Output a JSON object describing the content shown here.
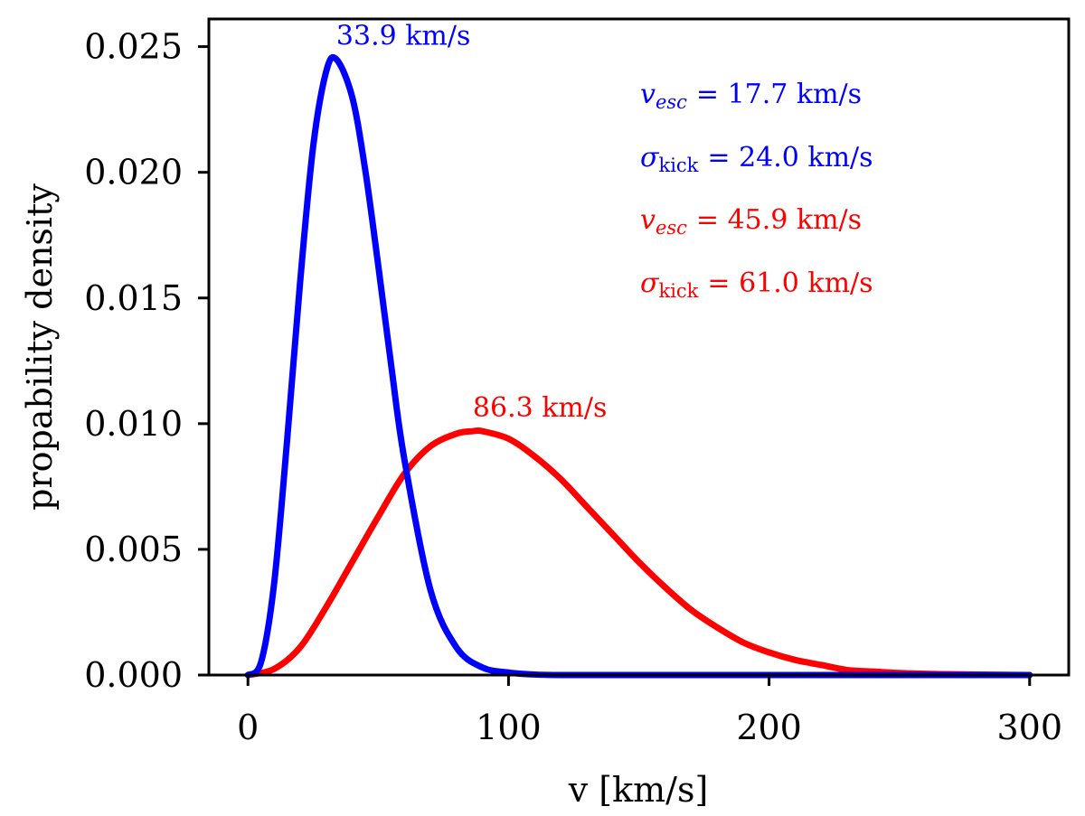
{
  "chart_data": {
    "type": "line",
    "xlabel": "v [km/s]",
    "ylabel": "propability density",
    "xlim": [
      -15,
      315
    ],
    "ylim": [
      0,
      0.0261
    ],
    "xticks": [
      0,
      100,
      200,
      300
    ],
    "xtick_labels": [
      "0",
      "100",
      "200",
      "300"
    ],
    "yticks": [
      0,
      0.005,
      0.01,
      0.015,
      0.02,
      0.025
    ],
    "ytick_labels": [
      "0.000",
      "0.005",
      "0.010",
      "0.015",
      "0.020",
      "0.025"
    ],
    "grid": false,
    "series": [
      {
        "name": "blue",
        "color": "#0000ff",
        "sigma_kick_value": 24.0,
        "v_esc_value": 17.7,
        "peak_x": 33.9,
        "peak_y": 0.0245,
        "peak_label": "33.9 km/s",
        "x": [
          0,
          5,
          10,
          15,
          20,
          25,
          30,
          33.9,
          40,
          45,
          50,
          55,
          60,
          70,
          80,
          90,
          100,
          110,
          120,
          150,
          200,
          250,
          300
        ],
        "y": [
          0,
          0.0005,
          0.0036,
          0.0093,
          0.0156,
          0.021,
          0.024,
          0.0245,
          0.023,
          0.0201,
          0.0163,
          0.0123,
          0.0086,
          0.0034,
          0.0011,
          0.0003,
          0.0001,
          2e-05,
          0,
          0,
          0,
          0,
          0
        ]
      },
      {
        "name": "red",
        "color": "#ff0000",
        "sigma_kick_value": 61.0,
        "v_esc_value": 45.9,
        "peak_x": 86.3,
        "peak_y": 0.0097,
        "peak_label": "86.3 km/s",
        "x": [
          0,
          10,
          20,
          30,
          40,
          50,
          60,
          70,
          80,
          86.3,
          90,
          100,
          110,
          120,
          130,
          140,
          150,
          160,
          170,
          180,
          190,
          200,
          210,
          220,
          230,
          240,
          250,
          260,
          270,
          280,
          290,
          300
        ],
        "y": [
          0,
          0.00024,
          0.0011,
          0.0027,
          0.0045,
          0.0063,
          0.008,
          0.0091,
          0.0096,
          0.0097,
          0.0097,
          0.0094,
          0.0087,
          0.0078,
          0.0067,
          0.0056,
          0.0045,
          0.0035,
          0.0026,
          0.0019,
          0.0013,
          0.0009,
          0.0006,
          0.0004,
          0.0002,
          0.00014,
          8e-05,
          5e-05,
          3e-05,
          2e-05,
          1e-05,
          0
        ]
      }
    ],
    "annotations": [
      {
        "symbol": "v",
        "sub": "esc",
        "value_text": "= 17.7 km/s",
        "color": "#0000ff"
      },
      {
        "symbol": "σ",
        "sub": "kick",
        "value_text": "= 24.0 km/s",
        "color": "#0000ff"
      },
      {
        "symbol": "v",
        "sub": "esc",
        "value_text": "= 45.9 km/s",
        "color": "#ff0000"
      },
      {
        "symbol": "σ",
        "sub": "kick",
        "value_text": "= 61.0 km/s",
        "color": "#ff0000"
      }
    ]
  }
}
